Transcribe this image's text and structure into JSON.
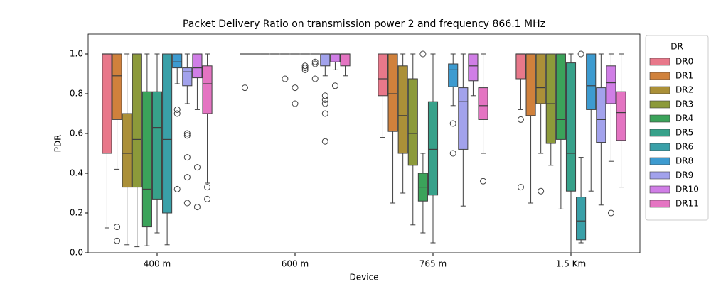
{
  "chart_data": {
    "type": "box",
    "title": "Packet Delivery Ratio on transmission power 2 and frequency 866.1 MHz",
    "x_label": "Device",
    "y_label": "PDR",
    "legend_title": "DR",
    "categories": [
      "400 m",
      "600 m",
      "765 m",
      "1.5 Km"
    ],
    "ylim": [
      0,
      1.1
    ],
    "yticks": [
      {
        "value": 0,
        "label": "0.0"
      },
      0.2,
      0.4,
      0.6,
      0.8,
      {
        "value": 1,
        "label": "1.0"
      }
    ],
    "legend_position": "outside right",
    "series": [
      {
        "name": "DR0",
        "color": "#e8788a",
        "boxes": [
          {
            "whislo": 0.125,
            "q1": 0.5,
            "median": 1.0,
            "q3": 1.0,
            "whishi": 1.0,
            "outliers": []
          },
          {
            "whislo": 1.0,
            "q1": 1.0,
            "median": 1.0,
            "q3": 1.0,
            "whishi": 1.0,
            "outliers": [
              0.83
            ]
          },
          {
            "whislo": 0.58,
            "q1": 0.79,
            "median": 0.875,
            "q3": 1.0,
            "whishi": 1.0,
            "outliers": []
          },
          {
            "whislo": 0.72,
            "q1": 0.875,
            "median": 1.0,
            "q3": 1.0,
            "whishi": 1.0,
            "outliers": [
              0.67,
              0.33
            ]
          }
        ]
      },
      {
        "name": "DR1",
        "color": "#d0813c",
        "boxes": [
          {
            "whislo": 0.42,
            "q1": 0.67,
            "median": 0.89,
            "q3": 1.0,
            "whishi": 1.0,
            "outliers": [
              0.13,
              0.06
            ]
          },
          {
            "whislo": 1.0,
            "q1": 1.0,
            "median": 1.0,
            "q3": 1.0,
            "whishi": 1.0,
            "outliers": []
          },
          {
            "whislo": 0.25,
            "q1": 0.61,
            "median": 0.8,
            "q3": 1.0,
            "whishi": 1.0,
            "outliers": []
          },
          {
            "whislo": 0.25,
            "q1": 0.69,
            "median": 1.0,
            "q3": 1.0,
            "whishi": 1.0,
            "outliers": []
          }
        ]
      },
      {
        "name": "DR2",
        "color": "#ab9038",
        "boxes": [
          {
            "whislo": 0.04,
            "q1": 0.33,
            "median": 0.5,
            "q3": 0.7,
            "whishi": 1.0,
            "outliers": []
          },
          {
            "whislo": 1.0,
            "q1": 1.0,
            "median": 1.0,
            "q3": 1.0,
            "whishi": 1.0,
            "outliers": []
          },
          {
            "whislo": 0.3,
            "q1": 0.5,
            "median": 0.69,
            "q3": 0.94,
            "whishi": 1.0,
            "outliers": []
          },
          {
            "whislo": 0.5,
            "q1": 0.75,
            "median": 0.83,
            "q3": 1.0,
            "whishi": 1.0,
            "outliers": [
              0.31
            ]
          }
        ]
      },
      {
        "name": "DR3",
        "color": "#8c9a3a",
        "boxes": [
          {
            "whislo": 0.03,
            "q1": 0.33,
            "median": 0.57,
            "q3": 1.0,
            "whishi": 1.0,
            "outliers": []
          },
          {
            "whislo": 1.0,
            "q1": 1.0,
            "median": 1.0,
            "q3": 1.0,
            "whishi": 1.0,
            "outliers": []
          },
          {
            "whislo": 0.14,
            "q1": 0.44,
            "median": 0.6,
            "q3": 0.875,
            "whishi": 1.0,
            "outliers": []
          },
          {
            "whislo": 0.44,
            "q1": 0.55,
            "median": 0.75,
            "q3": 1.0,
            "whishi": 1.0,
            "outliers": []
          }
        ]
      },
      {
        "name": "DR4",
        "color": "#3ba35a",
        "boxes": [
          {
            "whislo": 0.035,
            "q1": 0.13,
            "median": 0.32,
            "q3": 0.81,
            "whishi": 1.0,
            "outliers": []
          },
          {
            "whislo": 1.0,
            "q1": 1.0,
            "median": 1.0,
            "q3": 1.0,
            "whishi": 1.0,
            "outliers": [
              0.875
            ]
          },
          {
            "whislo": 0.1,
            "q1": 0.26,
            "median": 0.33,
            "q3": 0.4,
            "whishi": 0.5,
            "outliers": [
              1.0
            ]
          },
          {
            "whislo": 0.22,
            "q1": 0.57,
            "median": 0.67,
            "q3": 1.0,
            "whishi": 1.0,
            "outliers": []
          }
        ]
      },
      {
        "name": "DR5",
        "color": "#37a18a",
        "boxes": [
          {
            "whislo": 0.1,
            "q1": 0.27,
            "median": 0.63,
            "q3": 0.81,
            "whishi": 1.0,
            "outliers": []
          },
          {
            "whislo": 1.0,
            "q1": 1.0,
            "median": 1.0,
            "q3": 1.0,
            "whishi": 1.0,
            "outliers": [
              0.83,
              0.75
            ]
          },
          {
            "whislo": 0.05,
            "q1": 0.29,
            "median": 0.52,
            "q3": 0.76,
            "whishi": 1.0,
            "outliers": []
          },
          {
            "whislo": 0.0,
            "q1": 0.31,
            "median": 0.5,
            "q3": 0.955,
            "whishi": 1.0,
            "outliers": []
          }
        ]
      },
      {
        "name": "DR6",
        "color": "#39a0a8",
        "boxes": [
          {
            "whislo": 0.04,
            "q1": 0.2,
            "median": 0.57,
            "q3": 1.0,
            "whishi": 1.0,
            "outliers": []
          },
          {
            "whislo": 1.0,
            "q1": 1.0,
            "median": 1.0,
            "q3": 1.0,
            "whishi": 1.0,
            "outliers": [
              0.94,
              0.93,
              0.92
            ]
          },
          null,
          {
            "whislo": 0.05,
            "q1": 0.065,
            "median": 0.16,
            "q3": 0.28,
            "whishi": 0.48,
            "outliers": [
              1.0
            ]
          }
        ]
      },
      {
        "name": "DR8",
        "color": "#3d9bd0",
        "boxes": [
          {
            "whislo": 0.85,
            "q1": 0.93,
            "median": 0.96,
            "q3": 1.0,
            "whishi": 1.0,
            "outliers": [
              0.72,
              0.7,
              0.32
            ]
          },
          {
            "whislo": 1.0,
            "q1": 1.0,
            "median": 1.0,
            "q3": 1.0,
            "whishi": 1.0,
            "outliers": [
              0.96,
              0.95,
              0.875
            ]
          },
          {
            "whislo": 0.74,
            "q1": 0.835,
            "median": 0.92,
            "q3": 0.95,
            "whishi": 1.0,
            "outliers": [
              0.65,
              0.5
            ]
          },
          {
            "whislo": 0.31,
            "q1": 0.72,
            "median": 0.84,
            "q3": 1.0,
            "whishi": 1.0,
            "outliers": []
          }
        ]
      },
      {
        "name": "DR9",
        "color": "#a2a2ec",
        "boxes": [
          {
            "whislo": 0.75,
            "q1": 0.84,
            "median": 0.91,
            "q3": 0.93,
            "whishi": 1.0,
            "outliers": [
              0.6,
              0.59,
              0.48,
              0.38,
              0.25
            ]
          },
          {
            "whislo": 0.89,
            "q1": 0.94,
            "median": 1.0,
            "q3": 1.0,
            "whishi": 1.0,
            "outliers": [
              0.79,
              0.77,
              0.75,
              0.7,
              0.56
            ]
          },
          {
            "whislo": 0.235,
            "q1": 0.52,
            "median": 0.76,
            "q3": 0.83,
            "whishi": 1.0,
            "outliers": []
          },
          {
            "whislo": 0.24,
            "q1": 0.555,
            "median": 0.67,
            "q3": 0.83,
            "whishi": 1.0,
            "outliers": []
          }
        ]
      },
      {
        "name": "DR10",
        "color": "#d07ee6",
        "boxes": [
          {
            "whislo": 0.72,
            "q1": 0.88,
            "median": 0.93,
            "q3": 1.0,
            "whishi": 1.0,
            "outliers": [
              0.43,
              0.23
            ]
          },
          {
            "whislo": 0.92,
            "q1": 0.96,
            "median": 1.0,
            "q3": 1.0,
            "whishi": 1.0,
            "outliers": [
              0.84
            ]
          },
          {
            "whislo": 0.79,
            "q1": 0.865,
            "median": 0.94,
            "q3": 1.0,
            "whishi": 1.0,
            "outliers": []
          },
          {
            "whislo": 0.46,
            "q1": 0.75,
            "median": 0.855,
            "q3": 0.94,
            "whishi": 1.0,
            "outliers": [
              0.2
            ]
          }
        ]
      },
      {
        "name": "DR11",
        "color": "#e474c2",
        "boxes": [
          {
            "whislo": 0.35,
            "q1": 0.7,
            "median": 0.85,
            "q3": 0.94,
            "whishi": 1.0,
            "outliers": [
              0.33,
              0.27
            ]
          },
          {
            "whislo": 0.89,
            "q1": 0.94,
            "median": 1.0,
            "q3": 1.0,
            "whishi": 1.0,
            "outliers": []
          },
          {
            "whislo": 0.5,
            "q1": 0.67,
            "median": 0.74,
            "q3": 0.83,
            "whishi": 1.0,
            "outliers": [
              0.36
            ]
          },
          {
            "whislo": 0.33,
            "q1": 0.565,
            "median": 0.705,
            "q3": 0.81,
            "whishi": 1.0,
            "outliers": []
          }
        ]
      }
    ]
  }
}
